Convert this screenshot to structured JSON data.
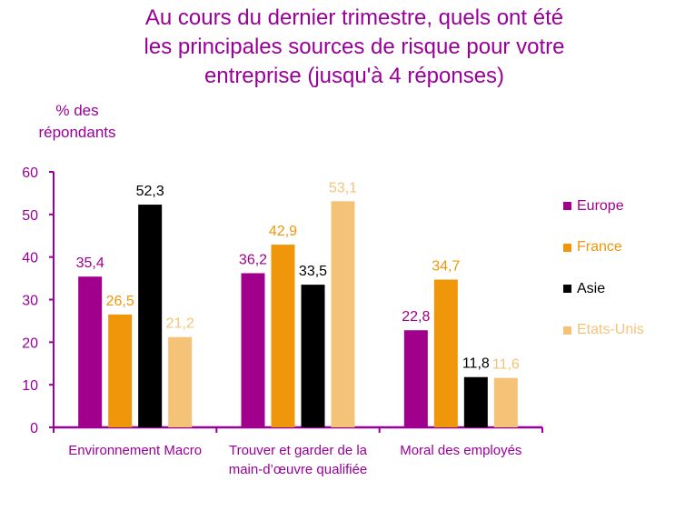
{
  "chart_data": {
    "type": "bar",
    "title": "Au cours du dernier trimestre, quels ont été les principales sources de risque pour votre entreprise (jusqu'à 4 réponses)",
    "title_lines": [
      "Au cours du dernier trimestre, quels ont été",
      "les principales sources de risque pour votre",
      "entreprise (jusqu'à 4 réponses)"
    ],
    "ylabel": "% des répondants",
    "ylabel_lines": [
      "% des",
      "répondants"
    ],
    "xlabel": "",
    "ylim": [
      0,
      60
    ],
    "yticks": [
      0,
      10,
      20,
      30,
      40,
      50,
      60
    ],
    "grid": false,
    "legend_position": "right",
    "categories": [
      [
        "Environnement Macro"
      ],
      [
        "Trouver et garder de la",
        "main-d’œuvre qualifiée"
      ],
      [
        "Moral des employés"
      ]
    ],
    "series": [
      {
        "name": "Europe",
        "color": "#A0008C",
        "label_color": "#A0008C",
        "values": [
          35.4,
          36.2,
          22.8
        ],
        "labels": [
          "35,4",
          "36,2",
          "22,8"
        ]
      },
      {
        "name": "France",
        "color": "#F0960A",
        "label_color": "#F0960A",
        "values": [
          26.5,
          42.9,
          34.7
        ],
        "labels": [
          "26,5",
          "42,9",
          "34,7"
        ]
      },
      {
        "name": "Asie",
        "color": "#000000",
        "label_color": "#000000",
        "values": [
          52.3,
          33.5,
          11.8
        ],
        "labels": [
          "52,3",
          "33,5",
          "11,8"
        ]
      },
      {
        "name": "Etats-Unis",
        "color": "#F5C378",
        "label_color": "#F5C378",
        "values": [
          21.2,
          53.1,
          11.6
        ],
        "labels": [
          "21,2",
          "53,1",
          "11,6"
        ]
      }
    ],
    "axis_color": "#990099"
  }
}
